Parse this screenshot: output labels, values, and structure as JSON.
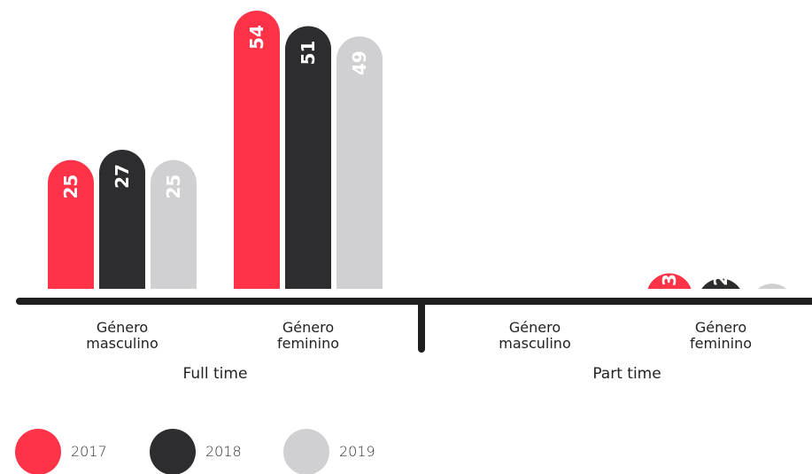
{
  "chart_data": {
    "type": "bar",
    "groups": [
      "Full time",
      "Part time"
    ],
    "categories": [
      "Género masculino",
      "Género feminino",
      "Género masculino",
      "Género feminino"
    ],
    "series": [
      {
        "name": "2017",
        "color": "#ff3347",
        "values": [
          25,
          54,
          null,
          3
        ]
      },
      {
        "name": "2018",
        "color": "#2d2d2f",
        "values": [
          27,
          51,
          null,
          2
        ]
      },
      {
        "name": "2019",
        "color": "#d0d0d2",
        "values": [
          25,
          49,
          null,
          1
        ]
      }
    ]
  }
}
